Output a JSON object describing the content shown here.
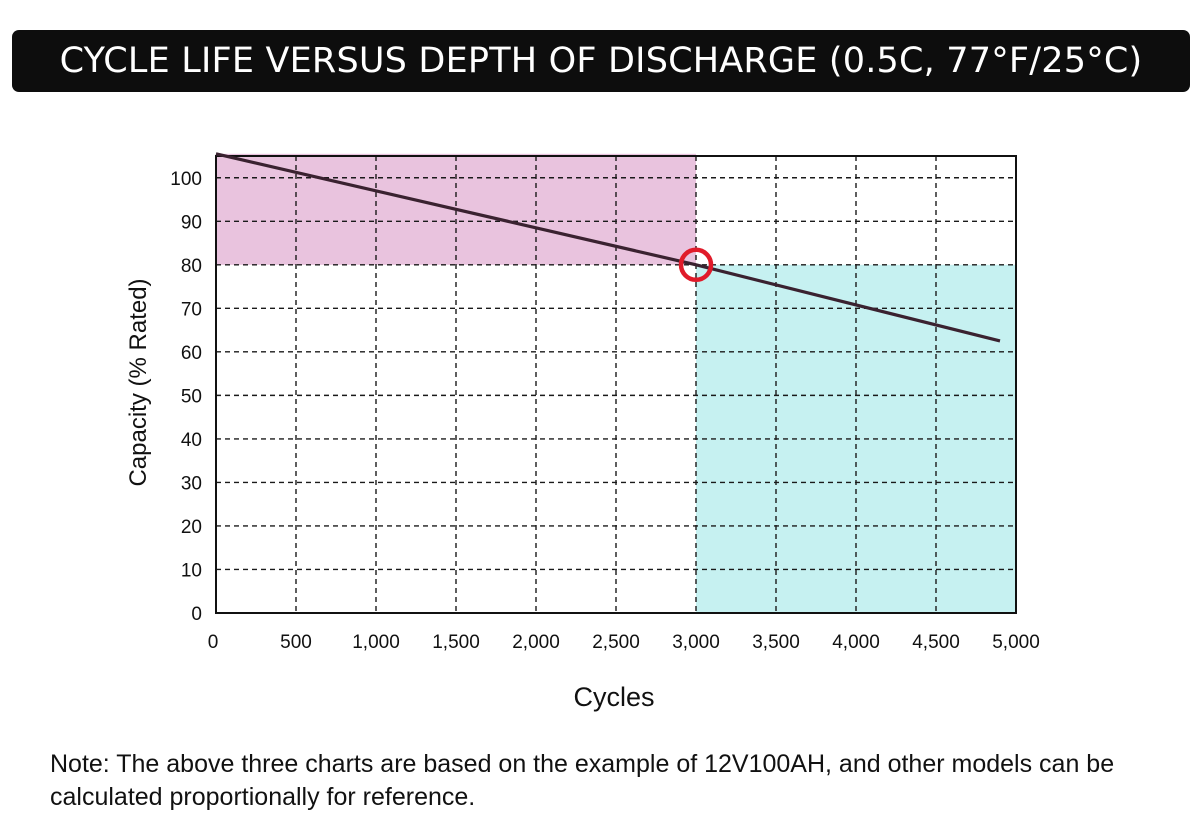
{
  "chart_data": {
    "type": "line",
    "title": "CYCLE LIFE VERSUS DEPTH OF DISCHARGE (0.5C, 77°F/25°C)",
    "xlabel": "Cycles",
    "ylabel": "Capacity (% Rated)",
    "xlim": [
      0,
      5000
    ],
    "ylim": [
      0,
      105
    ],
    "x_ticks": [
      0,
      500,
      1000,
      1500,
      2000,
      2500,
      3000,
      3500,
      4000,
      4500,
      5000
    ],
    "x_tick_labels": [
      "0",
      "500",
      "1,000",
      "1,500",
      "2,000",
      "2,500",
      "3,000",
      "3,500",
      "4,000",
      "4,500",
      "5,000"
    ],
    "y_ticks": [
      0,
      10,
      20,
      30,
      40,
      50,
      60,
      70,
      80,
      90,
      100
    ],
    "y_tick_labels": [
      "0",
      "10",
      "20",
      "30",
      "40",
      "50",
      "60",
      "70",
      "80",
      "90",
      "100"
    ],
    "grid": true,
    "series": [
      {
        "x": [
          0,
          3000,
          4900
        ],
        "y": [
          105.5,
          80,
          62.5
        ]
      }
    ],
    "highlight_regions": [
      {
        "x": [
          0,
          3000
        ],
        "y": [
          80,
          105.5
        ],
        "color": "#e9c3de"
      },
      {
        "x": [
          3000,
          5000
        ],
        "y": [
          0,
          80
        ],
        "color": "#c6f1f1"
      }
    ],
    "marker": {
      "x": 3000,
      "y": 80,
      "shape": "circle",
      "color": "#e01b2a"
    },
    "line_color": "#3a2230"
  },
  "note": "Note: The above three charts are based on the example of 12V100AH, and other models can be calculated proportionally for reference."
}
